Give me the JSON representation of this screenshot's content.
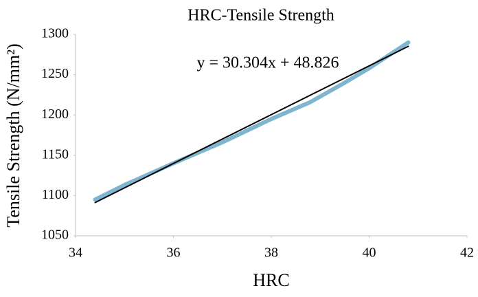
{
  "chart_data": {
    "type": "line",
    "title": "HRC-Tensile Strength",
    "x_label": "HRC",
    "y_label": "Tensile Strength (N/mm²)",
    "annotation": "y = 30.304x + 48.826",
    "series": [
      {
        "color": "#7fb5cf",
        "x": [
          34.4,
          35,
          36,
          37,
          38,
          38.8,
          39.5,
          40,
          40.8
        ],
        "values": [
          1095,
          1113,
          1140,
          1166,
          1195,
          1216,
          1240,
          1258,
          1290
        ]
      },
      {
        "color": "#000000",
        "x": [
          34.4,
          40.8
        ],
        "values": [
          1091.3,
          1285.2
        ]
      }
    ],
    "xlim": [
      34,
      42
    ],
    "xticks": [
      34,
      36,
      38,
      40,
      42
    ],
    "ylim": [
      1050,
      1300
    ],
    "yticks": [
      1050,
      1100,
      1150,
      1200,
      1250,
      1300
    ]
  }
}
